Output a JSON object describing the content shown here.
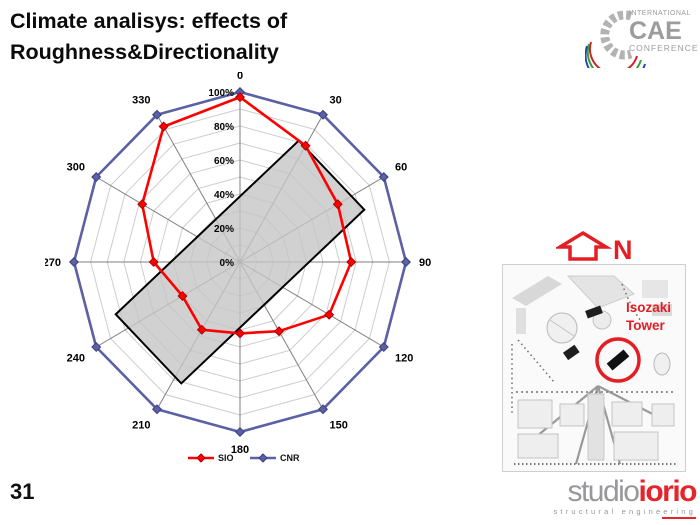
{
  "slide": {
    "title_line1": "Climate analisys: effects of",
    "title_line2": "Roughness&Directionality",
    "page_number": "31"
  },
  "cae_logo": {
    "line1": "INTERNATIONAL",
    "line2": "CAE",
    "line3": "CONFERENCE",
    "gray": "#9c9c9c",
    "arc_colors": [
      "#cc2229",
      "#3f9b3f",
      "#1f4f9f"
    ]
  },
  "chart_data": {
    "type": "radar",
    "title": "",
    "categories": [
      "0",
      "30",
      "60",
      "90",
      "120",
      "150",
      "180",
      "210",
      "240",
      "270",
      "300",
      "330"
    ],
    "angles_deg": [
      0,
      30,
      60,
      90,
      120,
      150,
      180,
      210,
      240,
      270,
      300,
      330
    ],
    "radial_ticks": [
      "0%",
      "20%",
      "40%",
      "60%",
      "80%",
      "100%"
    ],
    "radial_range": [
      0,
      100
    ],
    "ring_step_percent": 10,
    "grid": true,
    "legend_position": "bottom",
    "series": [
      {
        "name": "SIO",
        "color": "#ff0000",
        "marker_stroke": "#a80000",
        "values": [
          97,
          79,
          68,
          67,
          62,
          47,
          42,
          46,
          40,
          52,
          68,
          92
        ]
      },
      {
        "name": "CNR",
        "color": "#5c61a5",
        "marker_stroke": "#3b3f7e",
        "values": [
          100,
          100,
          100,
          100,
          100,
          100,
          100,
          100,
          100,
          100,
          100,
          100
        ]
      }
    ],
    "footprint_rect": {
      "fill": "#c6c6c6",
      "stroke": "#000000",
      "rotation_deg": -43.5,
      "width_pct": 76,
      "height_pct": 28
    }
  },
  "map": {
    "north_label": "N",
    "label_line1": "Isozaki",
    "label_line2": "Tower",
    "accent": "#e31e24"
  },
  "studio_logo": {
    "studio": "studio",
    "iorio": "iorio",
    "tagline": "structural engineering",
    "gray": "#97979c",
    "red": "#e4252b"
  }
}
